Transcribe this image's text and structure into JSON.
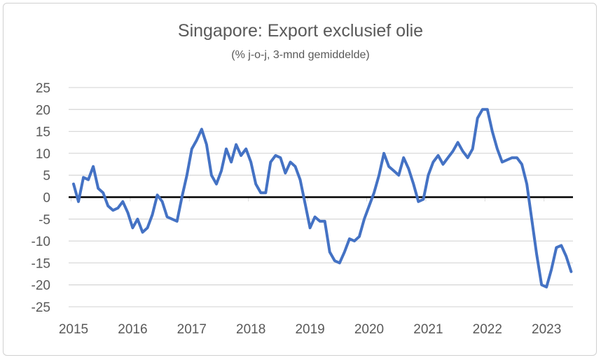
{
  "chart_data": {
    "type": "line",
    "title": "Singapore: Export exclusief olie",
    "subtitle": "(% j-o-j, 3-mnd gemiddelde)",
    "xlabel": "",
    "ylabel": "",
    "ylim": [
      -25,
      25
    ],
    "yticks": [
      "25",
      "20",
      "15",
      "10",
      "5",
      "0",
      "-5",
      "-10",
      "-15",
      "-20",
      "-25"
    ],
    "ytick_values": [
      25,
      20,
      15,
      10,
      5,
      0,
      -5,
      -10,
      -15,
      -20,
      -25
    ],
    "xticks": [
      "2015",
      "2016",
      "2017",
      "2018",
      "2019",
      "2020",
      "2021",
      "2022",
      "2023"
    ],
    "grid": true,
    "start": "2015-01",
    "frequency": "monthly",
    "series": [
      {
        "name": "Export exclusief olie",
        "color": "#4472C4",
        "values": [
          3,
          -1,
          4.5,
          4,
          7,
          2,
          1,
          -2,
          -3,
          -2.5,
          -1,
          -3.5,
          -7,
          -5,
          -8,
          -7,
          -4,
          0.5,
          -1,
          -4.5,
          -5,
          -5.5,
          0,
          5,
          11,
          13,
          15.5,
          12,
          5,
          3,
          6,
          11,
          8,
          12,
          9.5,
          11,
          8,
          3,
          1,
          1,
          8,
          9.5,
          9,
          5.5,
          8,
          7,
          4,
          -1.5,
          -7,
          -4.5,
          -5.5,
          -5.5,
          -12.5,
          -14.5,
          -15,
          -12.5,
          -9.5,
          -10,
          -9,
          -5,
          -2,
          1,
          5,
          10,
          7,
          6,
          5,
          9,
          6.5,
          3,
          -1,
          -0.5,
          5,
          8,
          9.5,
          7.5,
          9,
          10.5,
          12.5,
          10.5,
          9,
          11,
          18,
          20,
          20,
          15,
          11,
          8,
          8.5,
          9,
          9,
          7.5,
          3,
          -5,
          -13,
          -20,
          -20.5,
          -16.5,
          -11.5,
          -11,
          -13.5,
          -17
        ]
      }
    ]
  }
}
